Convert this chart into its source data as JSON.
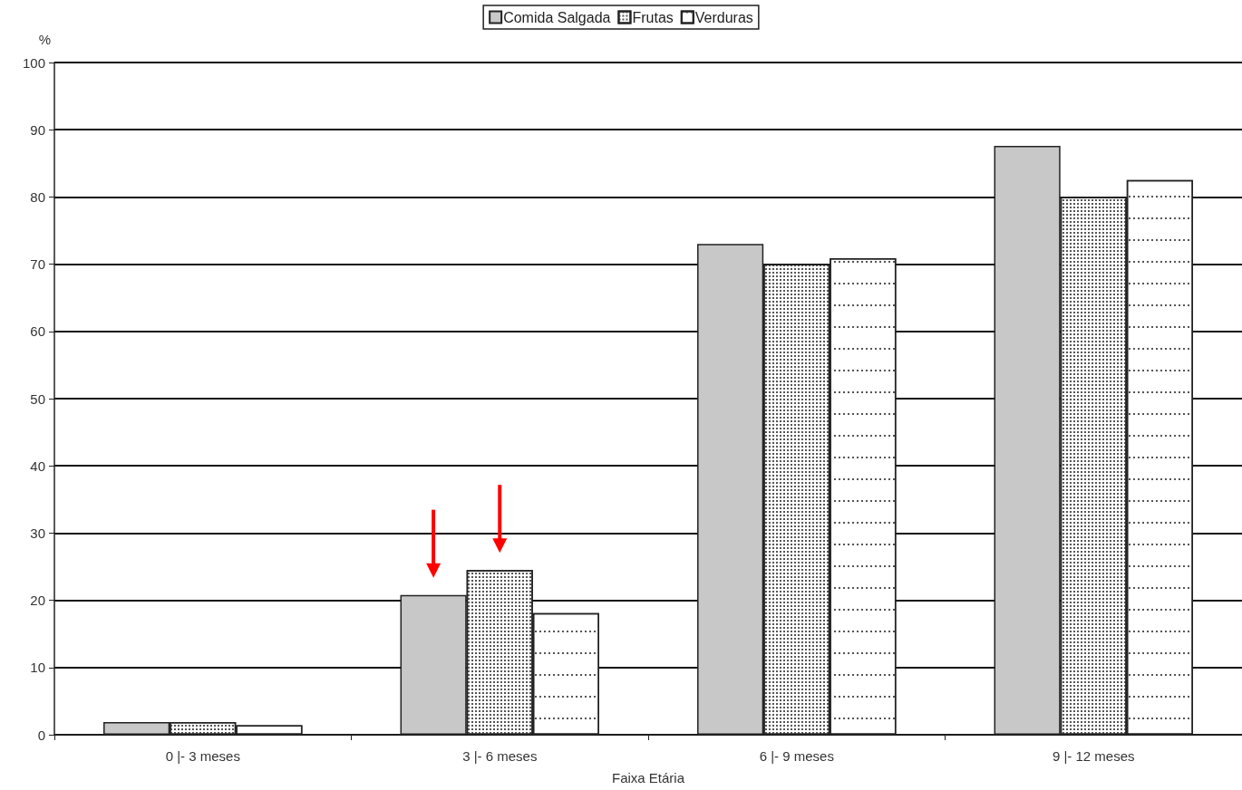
{
  "chart_data": {
    "type": "bar",
    "categories": [
      "0 |- 3 meses",
      "3 |- 6 meses",
      "6 |- 9 meses",
      "9 |- 12 meses"
    ],
    "series": [
      {
        "name": "Comida Salgada",
        "color": "#c8c8c8",
        "values": [
          1.9,
          20.8,
          73.0,
          87.6
        ]
      },
      {
        "name": "Frutas",
        "color": "#ffffff",
        "values": [
          1.9,
          24.5,
          70.0,
          80.0
        ]
      },
      {
        "name": "Verduras",
        "color": "#ffffff",
        "values": [
          1.4,
          18.1,
          70.9,
          82.5
        ]
      }
    ],
    "xlabel": "Faixa Etária",
    "ylabel": "%",
    "ylim": [
      0,
      100
    ],
    "yticks": [
      0,
      10,
      20,
      30,
      40,
      50,
      60,
      70,
      80,
      90,
      100
    ],
    "grid": "y",
    "legend": "top"
  }
}
